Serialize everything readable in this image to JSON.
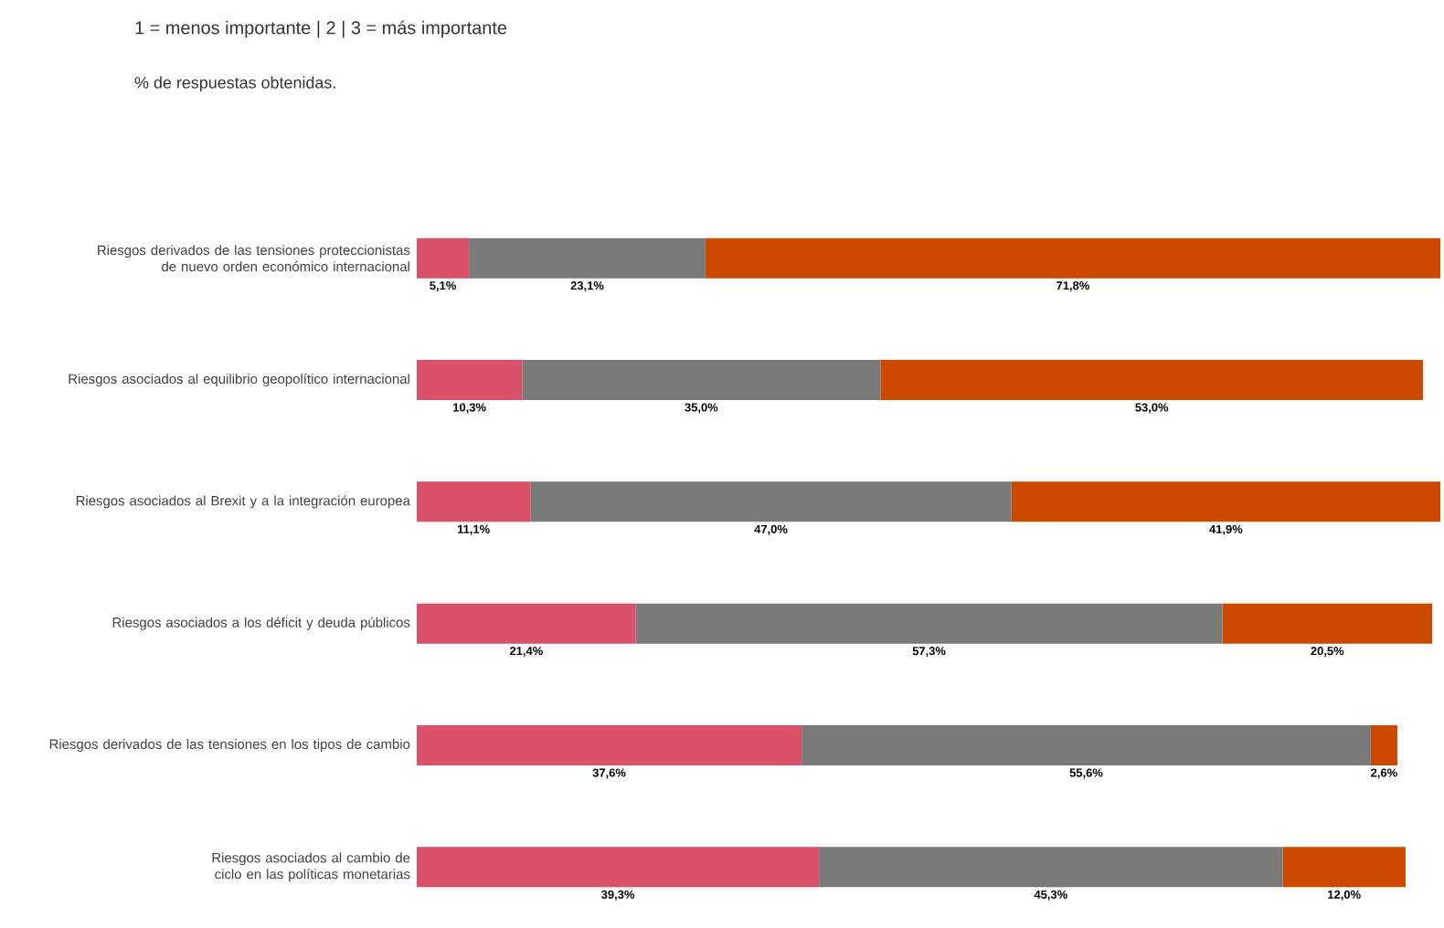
{
  "chart_data": {
    "type": "bar",
    "orientation": "horizontal",
    "stacked": true,
    "title": "1 = menos importante  |  2  |  3 = más importante",
    "subtitle": "% de respuestas obtenidas.",
    "tick_labels": "y",
    "categories": [
      "Riesgos derivados de las tensiones proteccionistas de nuevo orden económico internacional",
      "Riesgos asociados al equilibrio geopolítico internacional",
      "Riesgos asociados al Brexit y a la integración europea",
      "Riesgos asociados a los déficit y deuda públicos",
      "Riesgos derivados de las tensiones en los tipos de cambio",
      "Riesgos asociados al cambio de ciclo en las políticas monetarias"
    ],
    "series": [
      {
        "color": "#d9526a",
        "values": [
          5.1,
          10.3,
          11.1,
          21.4,
          37.6,
          39.3
        ],
        "value_labels": [
          "5,1%",
          "10,3%",
          "11,1%",
          "21,4%",
          "37,6%",
          "39,3%"
        ]
      },
      {
        "color": "#7a7a7a",
        "values": [
          23.1,
          35.0,
          47.0,
          57.3,
          55.6,
          45.3
        ],
        "value_labels": [
          "23,1%",
          "35,0%",
          "47,0%",
          "57,3%",
          "55,6%",
          "45,3%"
        ]
      },
      {
        "color": "#cc4a00",
        "values": [
          71.8,
          53.0,
          41.9,
          20.5,
          2.6,
          12.0
        ],
        "value_labels": [
          "71,8%",
          "53,0%",
          "41,9%",
          "20,5%",
          "2,6%",
          "12,0%"
        ]
      }
    ]
  }
}
